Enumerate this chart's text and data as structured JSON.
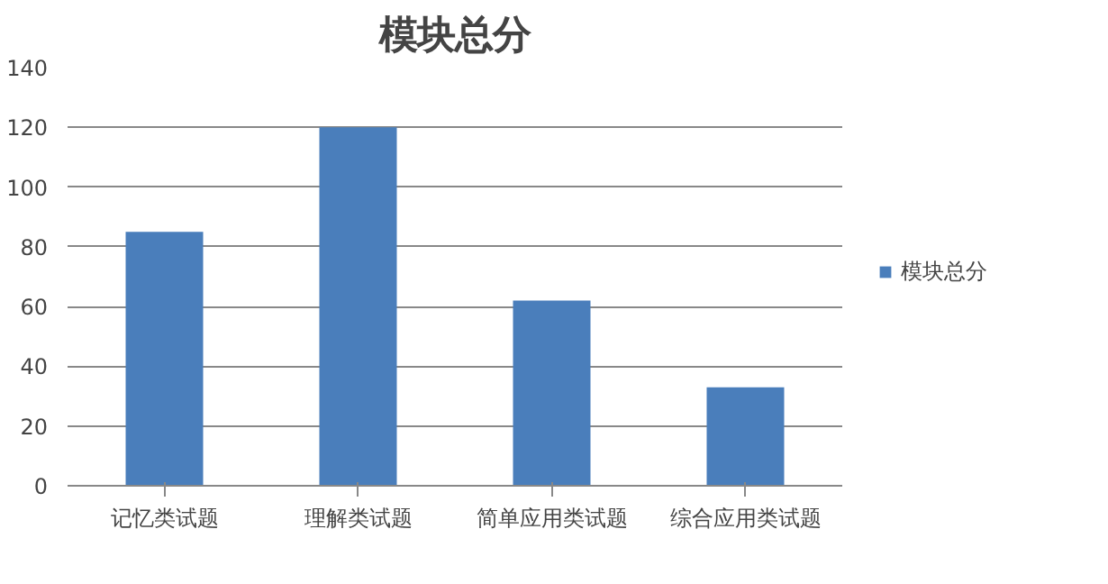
{
  "chart_data": {
    "type": "bar",
    "title": "模块总分",
    "categories": [
      "记忆类试题",
      "理解类试题",
      "简单应用类试题",
      "综合应用类试题"
    ],
    "series": [
      {
        "name": "模块总分",
        "color": "#4a7ebb",
        "values": [
          85,
          120,
          62,
          33
        ]
      }
    ],
    "ylim": [
      0,
      140
    ],
    "yticks": [
      0,
      20,
      40,
      60,
      80,
      100,
      120,
      140
    ],
    "grid": "y",
    "legend": "right"
  }
}
